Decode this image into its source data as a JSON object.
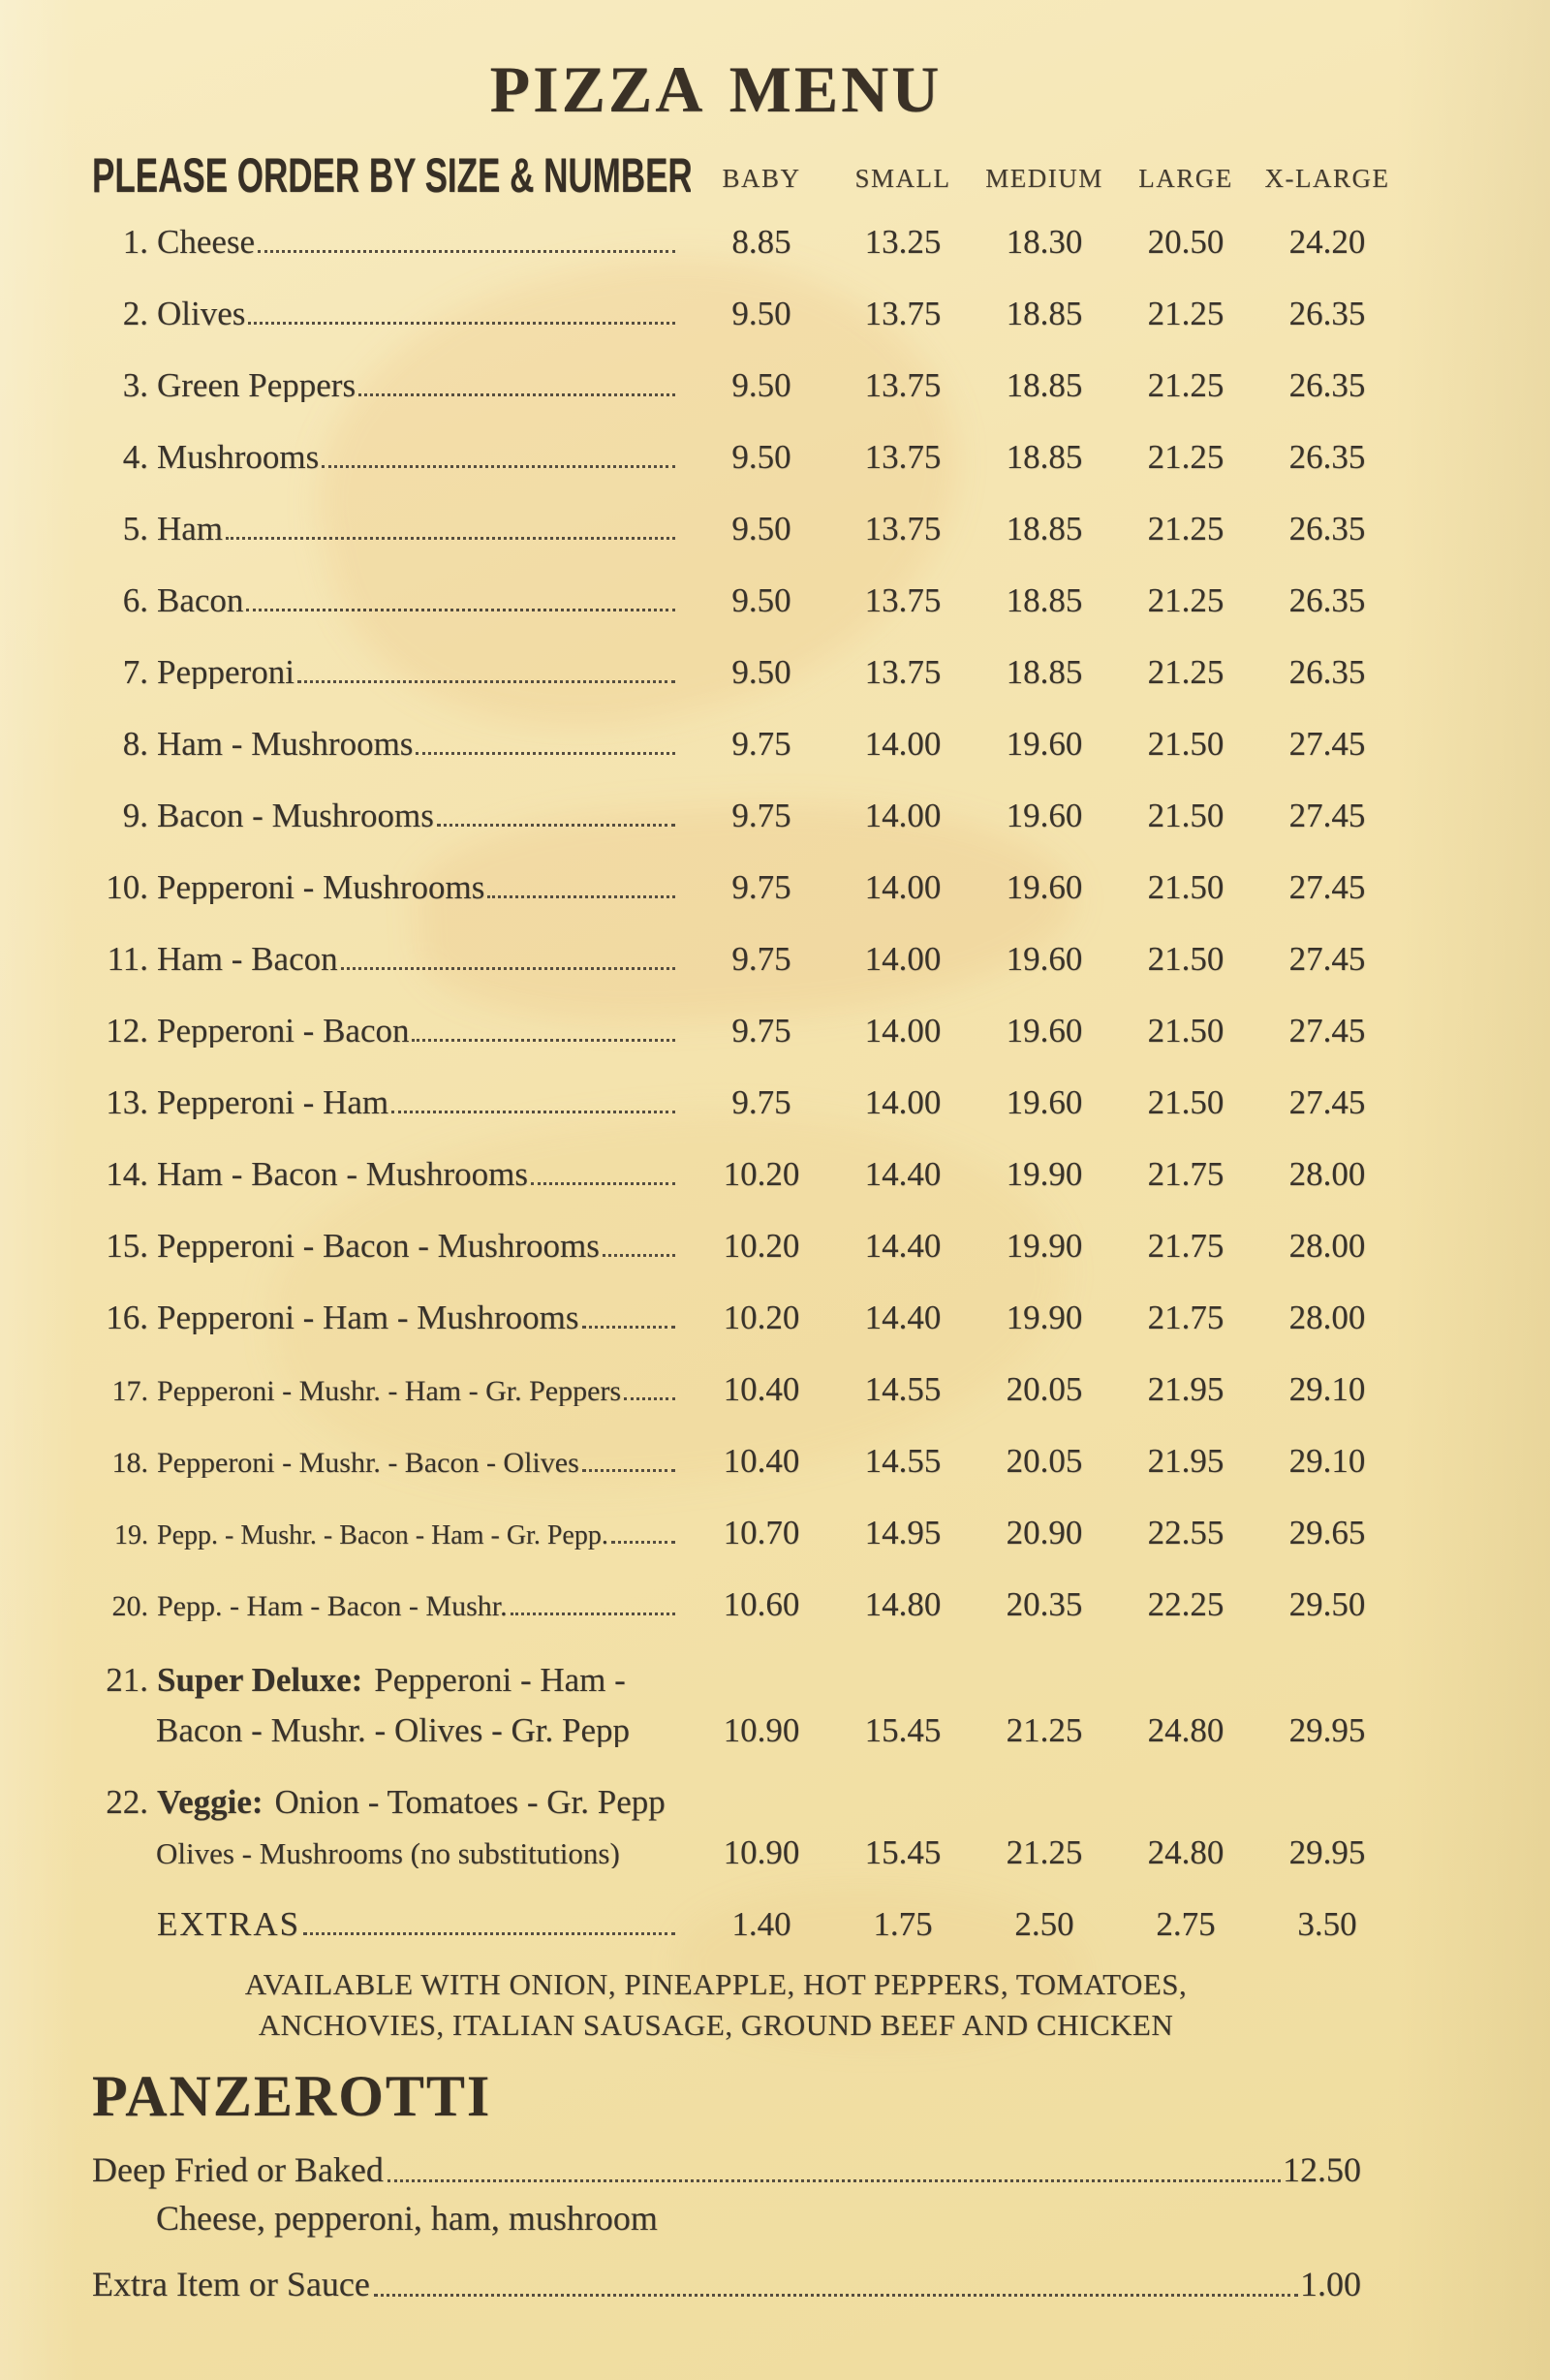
{
  "menu": {
    "title": "PIZZA MENU",
    "order_instruction": "PLEASE ORDER BY SIZE & NUMBER",
    "size_columns": [
      "BABY",
      "SMALL",
      "MEDIUM",
      "LARGE",
      "X-LARGE"
    ],
    "items": [
      {
        "num": "1.",
        "name": "Cheese",
        "prices": [
          "8.85",
          "13.25",
          "18.30",
          "20.50",
          "24.20"
        ]
      },
      {
        "num": "2.",
        "name": "Olives",
        "prices": [
          "9.50",
          "13.75",
          "18.85",
          "21.25",
          "26.35"
        ]
      },
      {
        "num": "3.",
        "name": "Green Peppers",
        "prices": [
          "9.50",
          "13.75",
          "18.85",
          "21.25",
          "26.35"
        ]
      },
      {
        "num": "4.",
        "name": "Mushrooms",
        "prices": [
          "9.50",
          "13.75",
          "18.85",
          "21.25",
          "26.35"
        ]
      },
      {
        "num": "5.",
        "name": "Ham",
        "prices": [
          "9.50",
          "13.75",
          "18.85",
          "21.25",
          "26.35"
        ]
      },
      {
        "num": "6.",
        "name": "Bacon",
        "prices": [
          "9.50",
          "13.75",
          "18.85",
          "21.25",
          "26.35"
        ]
      },
      {
        "num": "7.",
        "name": "Pepperoni",
        "prices": [
          "9.50",
          "13.75",
          "18.85",
          "21.25",
          "26.35"
        ]
      },
      {
        "num": "8.",
        "name": "Ham - Mushrooms",
        "prices": [
          "9.75",
          "14.00",
          "19.60",
          "21.50",
          "27.45"
        ]
      },
      {
        "num": "9.",
        "name": "Bacon - Mushrooms",
        "prices": [
          "9.75",
          "14.00",
          "19.60",
          "21.50",
          "27.45"
        ]
      },
      {
        "num": "10.",
        "name": "Pepperoni - Mushrooms",
        "prices": [
          "9.75",
          "14.00",
          "19.60",
          "21.50",
          "27.45"
        ]
      },
      {
        "num": "11.",
        "name": "Ham - Bacon",
        "prices": [
          "9.75",
          "14.00",
          "19.60",
          "21.50",
          "27.45"
        ]
      },
      {
        "num": "12.",
        "name": "Pepperoni - Bacon",
        "prices": [
          "9.75",
          "14.00",
          "19.60",
          "21.50",
          "27.45"
        ]
      },
      {
        "num": "13.",
        "name": "Pepperoni - Ham",
        "prices": [
          "9.75",
          "14.00",
          "19.60",
          "21.50",
          "27.45"
        ]
      },
      {
        "num": "14.",
        "name": "Ham - Bacon - Mushrooms",
        "prices": [
          "10.20",
          "14.40",
          "19.90",
          "21.75",
          "28.00"
        ]
      },
      {
        "num": "15.",
        "name": "Pepperoni - Bacon - Mushrooms",
        "prices": [
          "10.20",
          "14.40",
          "19.90",
          "21.75",
          "28.00"
        ]
      },
      {
        "num": "16.",
        "name": "Pepperoni - Ham - Mushrooms",
        "prices": [
          "10.20",
          "14.40",
          "19.90",
          "21.75",
          "28.00"
        ]
      },
      {
        "num": "17.",
        "name": "Pepperoni - Mushr. - Ham - Gr. Peppers",
        "prices": [
          "10.40",
          "14.55",
          "20.05",
          "21.95",
          "29.10"
        ],
        "size": "small"
      },
      {
        "num": "18.",
        "name": "Pepperoni - Mushr. - Bacon - Olives",
        "prices": [
          "10.40",
          "14.55",
          "20.05",
          "21.95",
          "29.10"
        ],
        "size": "small"
      },
      {
        "num": "19.",
        "name": "Pepp. - Mushr. - Bacon - Ham - Gr. Pepp.",
        "prices": [
          "10.70",
          "14.95",
          "20.90",
          "22.55",
          "29.65"
        ],
        "size": "xsmall"
      },
      {
        "num": "20.",
        "name": "Pepp. - Ham - Bacon - Mushr.",
        "prices": [
          "10.60",
          "14.80",
          "20.35",
          "22.25",
          "29.50"
        ],
        "size": "small"
      },
      {
        "num": "21.",
        "type": "double",
        "bold_label": "Super Deluxe:",
        "name_line1": "Pepperoni - Ham -",
        "name_line2": "Bacon - Mushr. - Olives - Gr. Pepp",
        "prices": [
          "10.90",
          "15.45",
          "21.25",
          "24.80",
          "29.95"
        ]
      },
      {
        "num": "22.",
        "type": "double",
        "bold_label": "Veggie:",
        "name_line1": "Onion - Tomatoes - Gr. Pepp",
        "name_line2": "Olives - Mushrooms (no substitutions)",
        "prices": [
          "10.90",
          "15.45",
          "21.25",
          "24.80",
          "29.95"
        ],
        "size": "small"
      }
    ],
    "extras": {
      "label": "EXTRAS",
      "prices": [
        "1.40",
        "1.75",
        "2.50",
        "2.75",
        "3.50"
      ]
    },
    "extras_note": [
      "AVAILABLE WITH ONION, PINEAPPLE, HOT PEPPERS, TOMATOES,",
      "ANCHOVIES, ITALIAN SAUSAGE, GROUND BEEF AND CHICKEN"
    ]
  },
  "panzerotti": {
    "title": "PANZEROTTI",
    "rows": [
      {
        "name": "Deep Fried or Baked",
        "price": "12.50",
        "description": "Cheese, pepperoni, ham, mushroom"
      },
      {
        "name": "Extra Item or Sauce",
        "price": "1.00"
      }
    ]
  },
  "colors": {
    "paper": "#f3e1a8",
    "ink": "#38322a",
    "bleed_watermark": "#e2a054"
  }
}
